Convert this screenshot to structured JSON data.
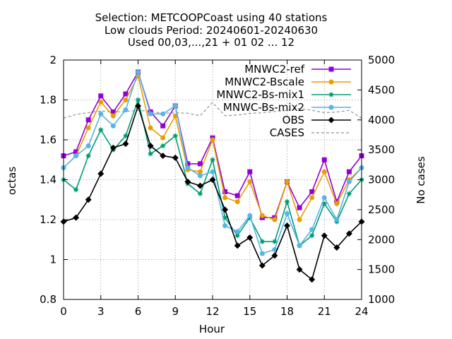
{
  "chart_data": {
    "type": "line",
    "title_lines": [
      "Selection: METCOOPCoast using    40 stations",
      "Low clouds   Period: 20240601-20240630",
      "Used 00,03,...,21 + 01 02 ... 12"
    ],
    "xlabel": "Hour",
    "ylabel": "octas",
    "y2label": "No cases",
    "xlim": [
      0,
      24
    ],
    "ylim": [
      0.8,
      2.0
    ],
    "y2lim": [
      1000,
      5000
    ],
    "xticks": [
      0,
      3,
      6,
      9,
      12,
      15,
      18,
      21,
      24
    ],
    "yticks": [
      0.8,
      1.0,
      1.2,
      1.4,
      1.6,
      1.8,
      2.0
    ],
    "ytick_labels": [
      "0.8",
      "1",
      "1.2",
      "1.4",
      "1.6",
      "1.8",
      "2"
    ],
    "y2ticks": [
      1000,
      1500,
      2000,
      2500,
      3000,
      3500,
      4000,
      4500,
      5000
    ],
    "grid": true,
    "legend_position": "top-right",
    "x": [
      0,
      1,
      2,
      3,
      4,
      5,
      6,
      7,
      8,
      9,
      10,
      11,
      12,
      13,
      14,
      15,
      16,
      17,
      18,
      19,
      20,
      21,
      22,
      23,
      24
    ],
    "series": [
      {
        "name": "MNWC2-ref",
        "color": "#9400d3",
        "marker": "square",
        "values": [
          1.52,
          1.54,
          1.7,
          1.82,
          1.74,
          1.83,
          1.94,
          1.74,
          1.67,
          1.77,
          1.48,
          1.48,
          1.61,
          1.34,
          1.32,
          1.44,
          1.21,
          1.21,
          1.39,
          1.26,
          1.34,
          1.5,
          1.29,
          1.44,
          1.52
        ]
      },
      {
        "name": "MNWC2-Bscale",
        "color": "#e69f00",
        "marker": "circle",
        "values": [
          1.46,
          1.52,
          1.66,
          1.79,
          1.72,
          1.8,
          1.92,
          1.66,
          1.61,
          1.72,
          1.45,
          1.44,
          1.6,
          1.31,
          1.29,
          1.39,
          1.22,
          1.2,
          1.39,
          1.2,
          1.31,
          1.44,
          1.28,
          1.4,
          1.46
        ]
      },
      {
        "name": "MNWC2-Bs-mix1",
        "color": "#009e73",
        "marker": "star",
        "values": [
          1.4,
          1.35,
          1.52,
          1.65,
          1.55,
          1.62,
          1.8,
          1.53,
          1.57,
          1.62,
          1.38,
          1.33,
          1.5,
          1.21,
          1.12,
          1.21,
          1.09,
          1.09,
          1.29,
          1.07,
          1.12,
          1.28,
          1.19,
          1.33,
          1.4
        ]
      },
      {
        "name": "MNWC-Bs-mix2",
        "color": "#56b4e9",
        "marker": "circle",
        "values": [
          1.46,
          1.52,
          1.57,
          1.73,
          1.67,
          1.75,
          1.94,
          1.73,
          1.73,
          1.77,
          1.46,
          1.42,
          1.44,
          1.17,
          1.14,
          1.22,
          1.03,
          1.05,
          1.23,
          1.07,
          1.15,
          1.31,
          1.2,
          1.39,
          1.46
        ]
      },
      {
        "name": "OBS",
        "color": "#000000",
        "marker": "diamond",
        "values": [
          1.19,
          1.21,
          1.3,
          1.43,
          1.56,
          1.58,
          1.77,
          1.57,
          1.52,
          1.51,
          1.39,
          1.37,
          1.4,
          1.25,
          1.07,
          1.11,
          0.97,
          1.02,
          1.17,
          0.95,
          0.9,
          1.12,
          1.06,
          1.13,
          1.19
        ]
      }
    ],
    "cases_series": {
      "name": "CASES",
      "color": "#a0a0a0",
      "axis": "y2",
      "values": [
        4030,
        4090,
        4120,
        4150,
        4130,
        4140,
        4160,
        4140,
        4110,
        4120,
        4110,
        4070,
        4290,
        4070,
        4080,
        4110,
        4120,
        4140,
        4160,
        4190,
        4160,
        4120,
        4130,
        4160,
        4030
      ]
    }
  }
}
